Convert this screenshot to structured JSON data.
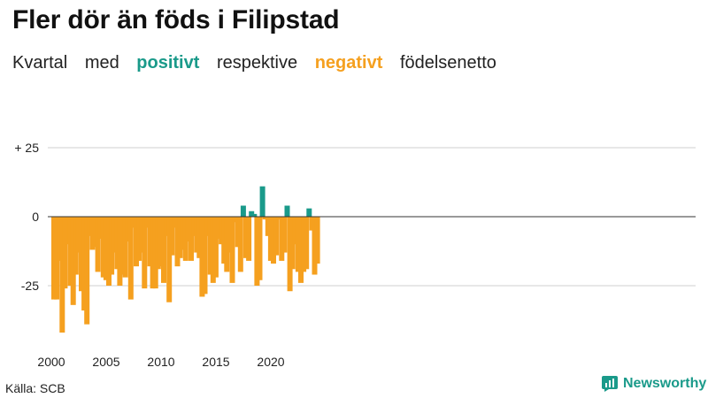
{
  "title": "Fler dör än föds i Filipstad",
  "subtitle": {
    "w1": "Kvartal",
    "w2": "med",
    "positive": "positivt",
    "w3": "respektive",
    "negative": "negativt",
    "w4": "födelsenetto"
  },
  "source": "Källa: SCB",
  "brand": "Newsworthy",
  "colors": {
    "positive": "#1a9a8a",
    "negative": "#f5a01f",
    "grid": "#cfcfcf",
    "zero": "#333333"
  },
  "chart_data": {
    "type": "bar",
    "ylim": [
      -44,
      25
    ],
    "yticks": [
      {
        "value": 25,
        "label": "+ 25"
      },
      {
        "value": 0,
        "label": "0"
      },
      {
        "value": -25,
        "label": "-25"
      }
    ],
    "xticks": [
      {
        "label": "2000",
        "index": 0
      },
      {
        "label": "2005",
        "index": 20
      },
      {
        "label": "2010",
        "index": 40
      },
      {
        "label": "2015",
        "index": 60
      },
      {
        "label": "2020",
        "index": 80
      }
    ],
    "start_year": 2000,
    "values": [
      -30,
      -30,
      -16,
      -42,
      -26,
      -10,
      -25,
      -32,
      -21,
      -13,
      -27,
      -34,
      -39,
      -7,
      -12,
      -11,
      -20,
      -8,
      -22,
      -23,
      -25,
      -21,
      -13,
      -19,
      -25,
      -21,
      -22,
      -9,
      -30,
      -4,
      -18,
      -16,
      -13,
      -26,
      -4,
      -18,
      -26,
      -26,
      -19,
      -18,
      -24,
      -7,
      -31,
      -14,
      -4,
      -18,
      -15,
      -12,
      -16,
      -9,
      -16,
      -7,
      -13,
      -15,
      -29,
      -28,
      -7,
      -21,
      -24,
      -22,
      -8,
      -10,
      -17,
      -20,
      -13,
      -24,
      -2,
      -11,
      -20,
      4,
      -15,
      -16,
      2,
      1,
      -25,
      -23,
      11,
      -1,
      -7,
      -16,
      -17,
      -14,
      -1,
      -16,
      -13,
      4,
      -27,
      -19,
      -10,
      -20,
      -24,
      -20,
      -19,
      3,
      -5,
      -21,
      -17
    ]
  }
}
